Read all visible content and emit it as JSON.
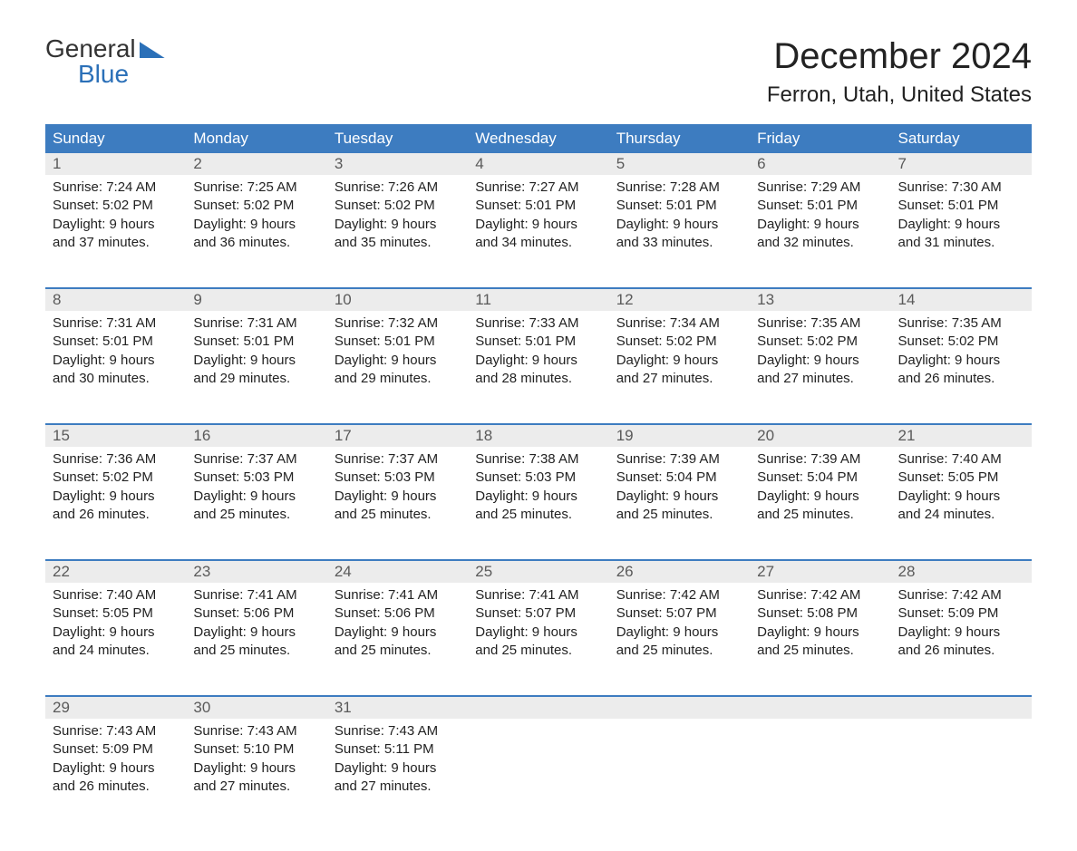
{
  "logo": {
    "text_general": "General",
    "text_blue": "Blue"
  },
  "title": "December 2024",
  "location": "Ferron, Utah, United States",
  "colors": {
    "header_blue": "#3d7cc0",
    "logo_blue": "#2b70b8",
    "day_num_bg": "#ececec",
    "text": "#222222",
    "background": "#ffffff"
  },
  "weekdays": [
    "Sunday",
    "Monday",
    "Tuesday",
    "Wednesday",
    "Thursday",
    "Friday",
    "Saturday"
  ],
  "weeks": [
    [
      {
        "n": "1",
        "sr": "7:24 AM",
        "ss": "5:02 PM",
        "dl1": "Daylight: 9 hours",
        "dl2": "and 37 minutes."
      },
      {
        "n": "2",
        "sr": "7:25 AM",
        "ss": "5:02 PM",
        "dl1": "Daylight: 9 hours",
        "dl2": "and 36 minutes."
      },
      {
        "n": "3",
        "sr": "7:26 AM",
        "ss": "5:02 PM",
        "dl1": "Daylight: 9 hours",
        "dl2": "and 35 minutes."
      },
      {
        "n": "4",
        "sr": "7:27 AM",
        "ss": "5:01 PM",
        "dl1": "Daylight: 9 hours",
        "dl2": "and 34 minutes."
      },
      {
        "n": "5",
        "sr": "7:28 AM",
        "ss": "5:01 PM",
        "dl1": "Daylight: 9 hours",
        "dl2": "and 33 minutes."
      },
      {
        "n": "6",
        "sr": "7:29 AM",
        "ss": "5:01 PM",
        "dl1": "Daylight: 9 hours",
        "dl2": "and 32 minutes."
      },
      {
        "n": "7",
        "sr": "7:30 AM",
        "ss": "5:01 PM",
        "dl1": "Daylight: 9 hours",
        "dl2": "and 31 minutes."
      }
    ],
    [
      {
        "n": "8",
        "sr": "7:31 AM",
        "ss": "5:01 PM",
        "dl1": "Daylight: 9 hours",
        "dl2": "and 30 minutes."
      },
      {
        "n": "9",
        "sr": "7:31 AM",
        "ss": "5:01 PM",
        "dl1": "Daylight: 9 hours",
        "dl2": "and 29 minutes."
      },
      {
        "n": "10",
        "sr": "7:32 AM",
        "ss": "5:01 PM",
        "dl1": "Daylight: 9 hours",
        "dl2": "and 29 minutes."
      },
      {
        "n": "11",
        "sr": "7:33 AM",
        "ss": "5:01 PM",
        "dl1": "Daylight: 9 hours",
        "dl2": "and 28 minutes."
      },
      {
        "n": "12",
        "sr": "7:34 AM",
        "ss": "5:02 PM",
        "dl1": "Daylight: 9 hours",
        "dl2": "and 27 minutes."
      },
      {
        "n": "13",
        "sr": "7:35 AM",
        "ss": "5:02 PM",
        "dl1": "Daylight: 9 hours",
        "dl2": "and 27 minutes."
      },
      {
        "n": "14",
        "sr": "7:35 AM",
        "ss": "5:02 PM",
        "dl1": "Daylight: 9 hours",
        "dl2": "and 26 minutes."
      }
    ],
    [
      {
        "n": "15",
        "sr": "7:36 AM",
        "ss": "5:02 PM",
        "dl1": "Daylight: 9 hours",
        "dl2": "and 26 minutes."
      },
      {
        "n": "16",
        "sr": "7:37 AM",
        "ss": "5:03 PM",
        "dl1": "Daylight: 9 hours",
        "dl2": "and 25 minutes."
      },
      {
        "n": "17",
        "sr": "7:37 AM",
        "ss": "5:03 PM",
        "dl1": "Daylight: 9 hours",
        "dl2": "and 25 minutes."
      },
      {
        "n": "18",
        "sr": "7:38 AM",
        "ss": "5:03 PM",
        "dl1": "Daylight: 9 hours",
        "dl2": "and 25 minutes."
      },
      {
        "n": "19",
        "sr": "7:39 AM",
        "ss": "5:04 PM",
        "dl1": "Daylight: 9 hours",
        "dl2": "and 25 minutes."
      },
      {
        "n": "20",
        "sr": "7:39 AM",
        "ss": "5:04 PM",
        "dl1": "Daylight: 9 hours",
        "dl2": "and 25 minutes."
      },
      {
        "n": "21",
        "sr": "7:40 AM",
        "ss": "5:05 PM",
        "dl1": "Daylight: 9 hours",
        "dl2": "and 24 minutes."
      }
    ],
    [
      {
        "n": "22",
        "sr": "7:40 AM",
        "ss": "5:05 PM",
        "dl1": "Daylight: 9 hours",
        "dl2": "and 24 minutes."
      },
      {
        "n": "23",
        "sr": "7:41 AM",
        "ss": "5:06 PM",
        "dl1": "Daylight: 9 hours",
        "dl2": "and 25 minutes."
      },
      {
        "n": "24",
        "sr": "7:41 AM",
        "ss": "5:06 PM",
        "dl1": "Daylight: 9 hours",
        "dl2": "and 25 minutes."
      },
      {
        "n": "25",
        "sr": "7:41 AM",
        "ss": "5:07 PM",
        "dl1": "Daylight: 9 hours",
        "dl2": "and 25 minutes."
      },
      {
        "n": "26",
        "sr": "7:42 AM",
        "ss": "5:07 PM",
        "dl1": "Daylight: 9 hours",
        "dl2": "and 25 minutes."
      },
      {
        "n": "27",
        "sr": "7:42 AM",
        "ss": "5:08 PM",
        "dl1": "Daylight: 9 hours",
        "dl2": "and 25 minutes."
      },
      {
        "n": "28",
        "sr": "7:42 AM",
        "ss": "5:09 PM",
        "dl1": "Daylight: 9 hours",
        "dl2": "and 26 minutes."
      }
    ],
    [
      {
        "n": "29",
        "sr": "7:43 AM",
        "ss": "5:09 PM",
        "dl1": "Daylight: 9 hours",
        "dl2": "and 26 minutes."
      },
      {
        "n": "30",
        "sr": "7:43 AM",
        "ss": "5:10 PM",
        "dl1": "Daylight: 9 hours",
        "dl2": "and 27 minutes."
      },
      {
        "n": "31",
        "sr": "7:43 AM",
        "ss": "5:11 PM",
        "dl1": "Daylight: 9 hours",
        "dl2": "and 27 minutes."
      },
      {
        "empty": true
      },
      {
        "empty": true
      },
      {
        "empty": true
      },
      {
        "empty": true
      }
    ]
  ],
  "labels": {
    "sunrise_prefix": "Sunrise: ",
    "sunset_prefix": "Sunset: "
  }
}
